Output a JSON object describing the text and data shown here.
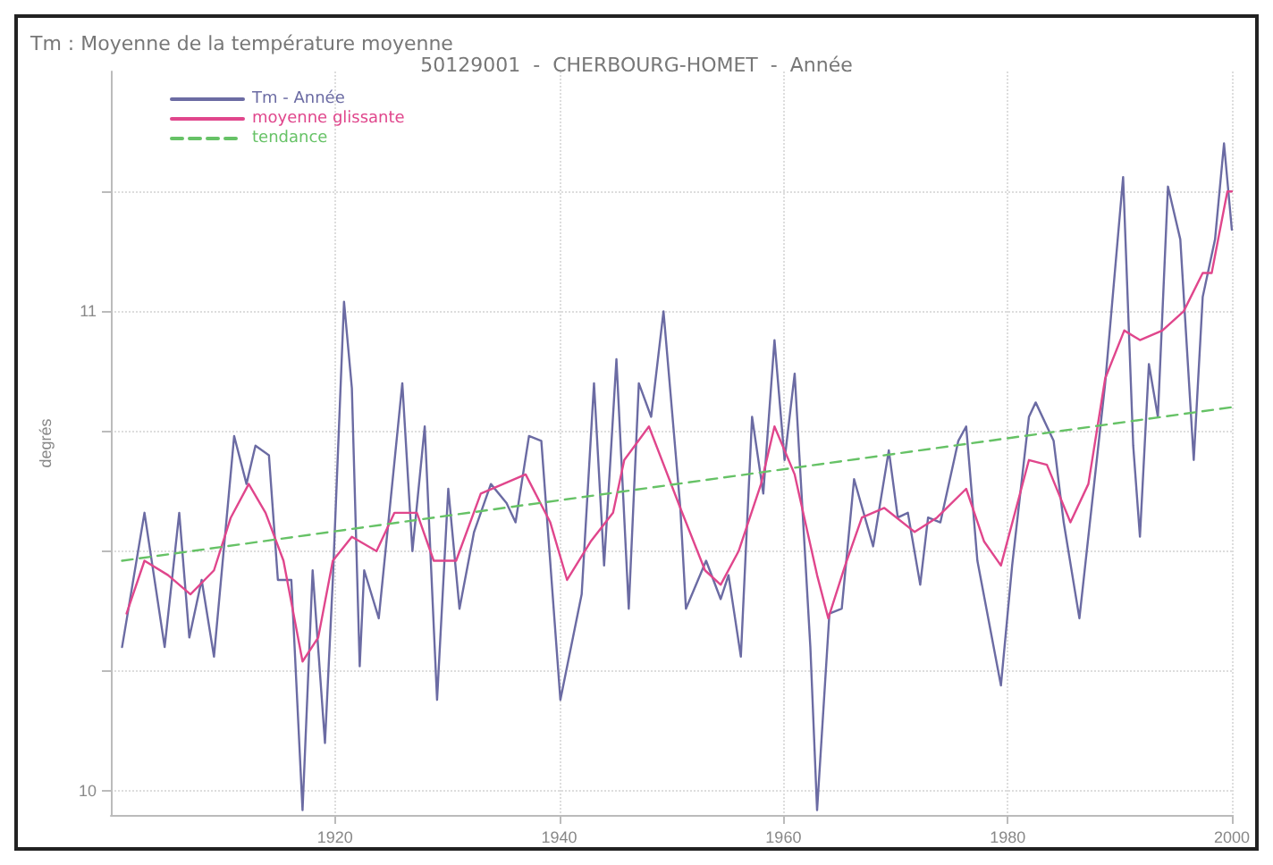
{
  "chart_data": {
    "type": "line",
    "title": "Tm : Moyenne de la température moyenne",
    "subtitle": "50129001  -  CHERBOURG-HOMET  -  Année",
    "ylabel": "degrés",
    "xlim": [
      1900,
      2000
    ],
    "xticks": [
      1920,
      1940,
      1960,
      1980,
      2000
    ],
    "ylim": [
      9.95,
      11.5
    ],
    "yticks": [
      10,
      {
        "value": 10.25,
        "label": null
      },
      {
        "value": 10.5,
        "label": null
      },
      {
        "value": 10.75,
        "label": null
      },
      11,
      {
        "value": 11.25,
        "label": null
      }
    ],
    "grid": true,
    "legend": "top left",
    "series": [
      {
        "name": "Tm - Année",
        "color": "#6b6ba3",
        "x": [
          1901.0,
          1903.0,
          1904.8,
          1906.1,
          1907.0,
          1908.1,
          1909.2,
          1911.0,
          1912.1,
          1912.9,
          1914.1,
          1914.9,
          1916.1,
          1917.1,
          1918.0,
          1919.1,
          1919.8,
          1920.8,
          1921.5,
          1922.2,
          1922.6,
          1923.9,
          1926.0,
          1926.9,
          1928.0,
          1929.1,
          1930.1,
          1931.1,
          1932.4,
          1933.9,
          1935.3,
          1936.1,
          1937.3,
          1938.4,
          1940.1,
          1942.0,
          1943.1,
          1944.0,
          1945.1,
          1946.2,
          1947.1,
          1948.2,
          1949.3,
          1950.8,
          1951.3,
          1953.1,
          1954.4,
          1955.1,
          1956.2,
          1957.2,
          1958.2,
          1959.2,
          1960.1,
          1961.0,
          1962.4,
          1963.0,
          1964.1,
          1965.2,
          1966.3,
          1968.0,
          1969.4,
          1970.2,
          1971.1,
          1972.2,
          1972.9,
          1974.0,
          1975.6,
          1976.3,
          1977.3,
          1979.4,
          1980.4,
          1981.9,
          1982.5,
          1984.1,
          1985.0,
          1986.4,
          1988.7,
          1990.3,
          1991.2,
          1991.8,
          1992.6,
          1993.4,
          1994.3,
          1995.4,
          1996.6,
          1997.4,
          1998.5,
          1999.3,
          2000.0
        ],
        "values": [
          10.3,
          10.58,
          10.3,
          10.58,
          10.32,
          10.44,
          10.28,
          10.74,
          10.64,
          10.72,
          10.7,
          10.44,
          10.44,
          9.96,
          10.46,
          10.1,
          10.44,
          11.02,
          10.84,
          10.26,
          10.46,
          10.36,
          10.85,
          10.5,
          10.76,
          10.19,
          10.63,
          10.38,
          10.54,
          10.64,
          10.6,
          10.56,
          10.74,
          10.73,
          10.19,
          10.41,
          10.85,
          10.47,
          10.9,
          10.38,
          10.85,
          10.78,
          11.0,
          10.59,
          10.38,
          10.48,
          10.4,
          10.45,
          10.28,
          10.78,
          10.62,
          10.94,
          10.69,
          10.87,
          10.3,
          9.96,
          10.37,
          10.38,
          10.65,
          10.51,
          10.71,
          10.57,
          10.58,
          10.43,
          10.57,
          10.56,
          10.73,
          10.76,
          10.48,
          10.22,
          10.47,
          10.78,
          10.81,
          10.73,
          10.56,
          10.36,
          10.85,
          11.28,
          10.72,
          10.53,
          10.89,
          10.78,
          11.26,
          11.15,
          10.69,
          11.03,
          11.15,
          11.35,
          11.17
        ]
      },
      {
        "name": "moyenne glissante",
        "color": "#e0468c",
        "x": [
          1901.4,
          1903.0,
          1905.1,
          1907.1,
          1909.2,
          1910.7,
          1912.3,
          1913.8,
          1915.4,
          1917.1,
          1918.5,
          1919.8,
          1921.5,
          1923.7,
          1925.3,
          1927.3,
          1928.8,
          1930.8,
          1933.0,
          1935.0,
          1937.0,
          1939.2,
          1940.7,
          1942.8,
          1944.8,
          1945.8,
          1948.0,
          1950.8,
          1953.0,
          1954.4,
          1956.0,
          1958.0,
          1959.2,
          1961.0,
          1963.0,
          1964.0,
          1965.5,
          1967.0,
          1969.0,
          1971.7,
          1973.7,
          1976.3,
          1977.9,
          1979.4,
          1981.9,
          1983.5,
          1985.6,
          1987.2,
          1988.7,
          1990.4,
          1991.8,
          1993.8,
          1995.7,
          1997.4,
          1998.2,
          1999.6,
          2000.0
        ],
        "values": [
          10.37,
          10.48,
          10.45,
          10.41,
          10.46,
          10.57,
          10.64,
          10.58,
          10.48,
          10.27,
          10.32,
          10.48,
          10.53,
          10.5,
          10.58,
          10.58,
          10.48,
          10.48,
          10.62,
          10.64,
          10.66,
          10.56,
          10.44,
          10.52,
          10.58,
          10.69,
          10.76,
          10.59,
          10.46,
          10.43,
          10.5,
          10.64,
          10.76,
          10.66,
          10.45,
          10.36,
          10.47,
          10.57,
          10.59,
          10.54,
          10.57,
          10.63,
          10.52,
          10.47,
          10.69,
          10.68,
          10.56,
          10.64,
          10.86,
          10.96,
          10.94,
          10.96,
          11.0,
          11.08,
          11.08,
          11.25,
          11.25
        ]
      },
      {
        "name": "tendance",
        "color": "#66c266",
        "line_style": "dashed",
        "x": [
          1901,
          2000
        ],
        "values": [
          10.48,
          10.8
        ]
      }
    ]
  }
}
